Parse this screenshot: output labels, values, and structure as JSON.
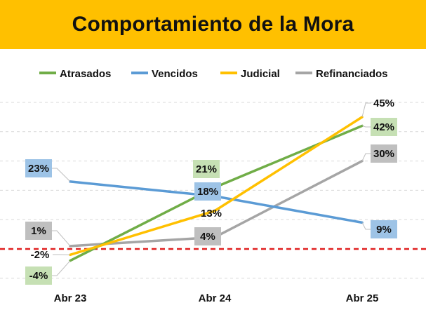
{
  "chart_data": {
    "type": "line",
    "title": "Comportamiento de la Mora",
    "categories": [
      "Abr 23",
      "Abr 24",
      "Abr 25"
    ],
    "series": [
      {
        "name": "Atrasados",
        "color": "#70AD47",
        "values": [
          -4,
          21,
          42
        ],
        "labels": [
          "-4%",
          "21%",
          "42%"
        ],
        "label_box": "#C6E0B4"
      },
      {
        "name": "Vencidos",
        "color": "#5B9BD5",
        "values": [
          23,
          18,
          9
        ],
        "labels": [
          "23%",
          "18%",
          "9%"
        ],
        "label_box": "#9DC3E6"
      },
      {
        "name": "Judicial",
        "color": "#FFC000",
        "values": [
          -2,
          13,
          45
        ],
        "labels": [
          "-2%",
          "13%",
          "45%"
        ],
        "label_box": null
      },
      {
        "name": "Refinanciados",
        "color": "#A5A5A5",
        "values": [
          1,
          4,
          30
        ],
        "labels": [
          "1%",
          "4%",
          "30%"
        ],
        "label_box": "#BFBFBF"
      }
    ],
    "ylim": [
      -10,
      50
    ],
    "grid": true,
    "gridline_style": "dashed",
    "zero_line": {
      "value": 0,
      "color": "#E02020",
      "style": "dashed"
    },
    "legend_position": "top",
    "xlabel": "",
    "ylabel": ""
  }
}
